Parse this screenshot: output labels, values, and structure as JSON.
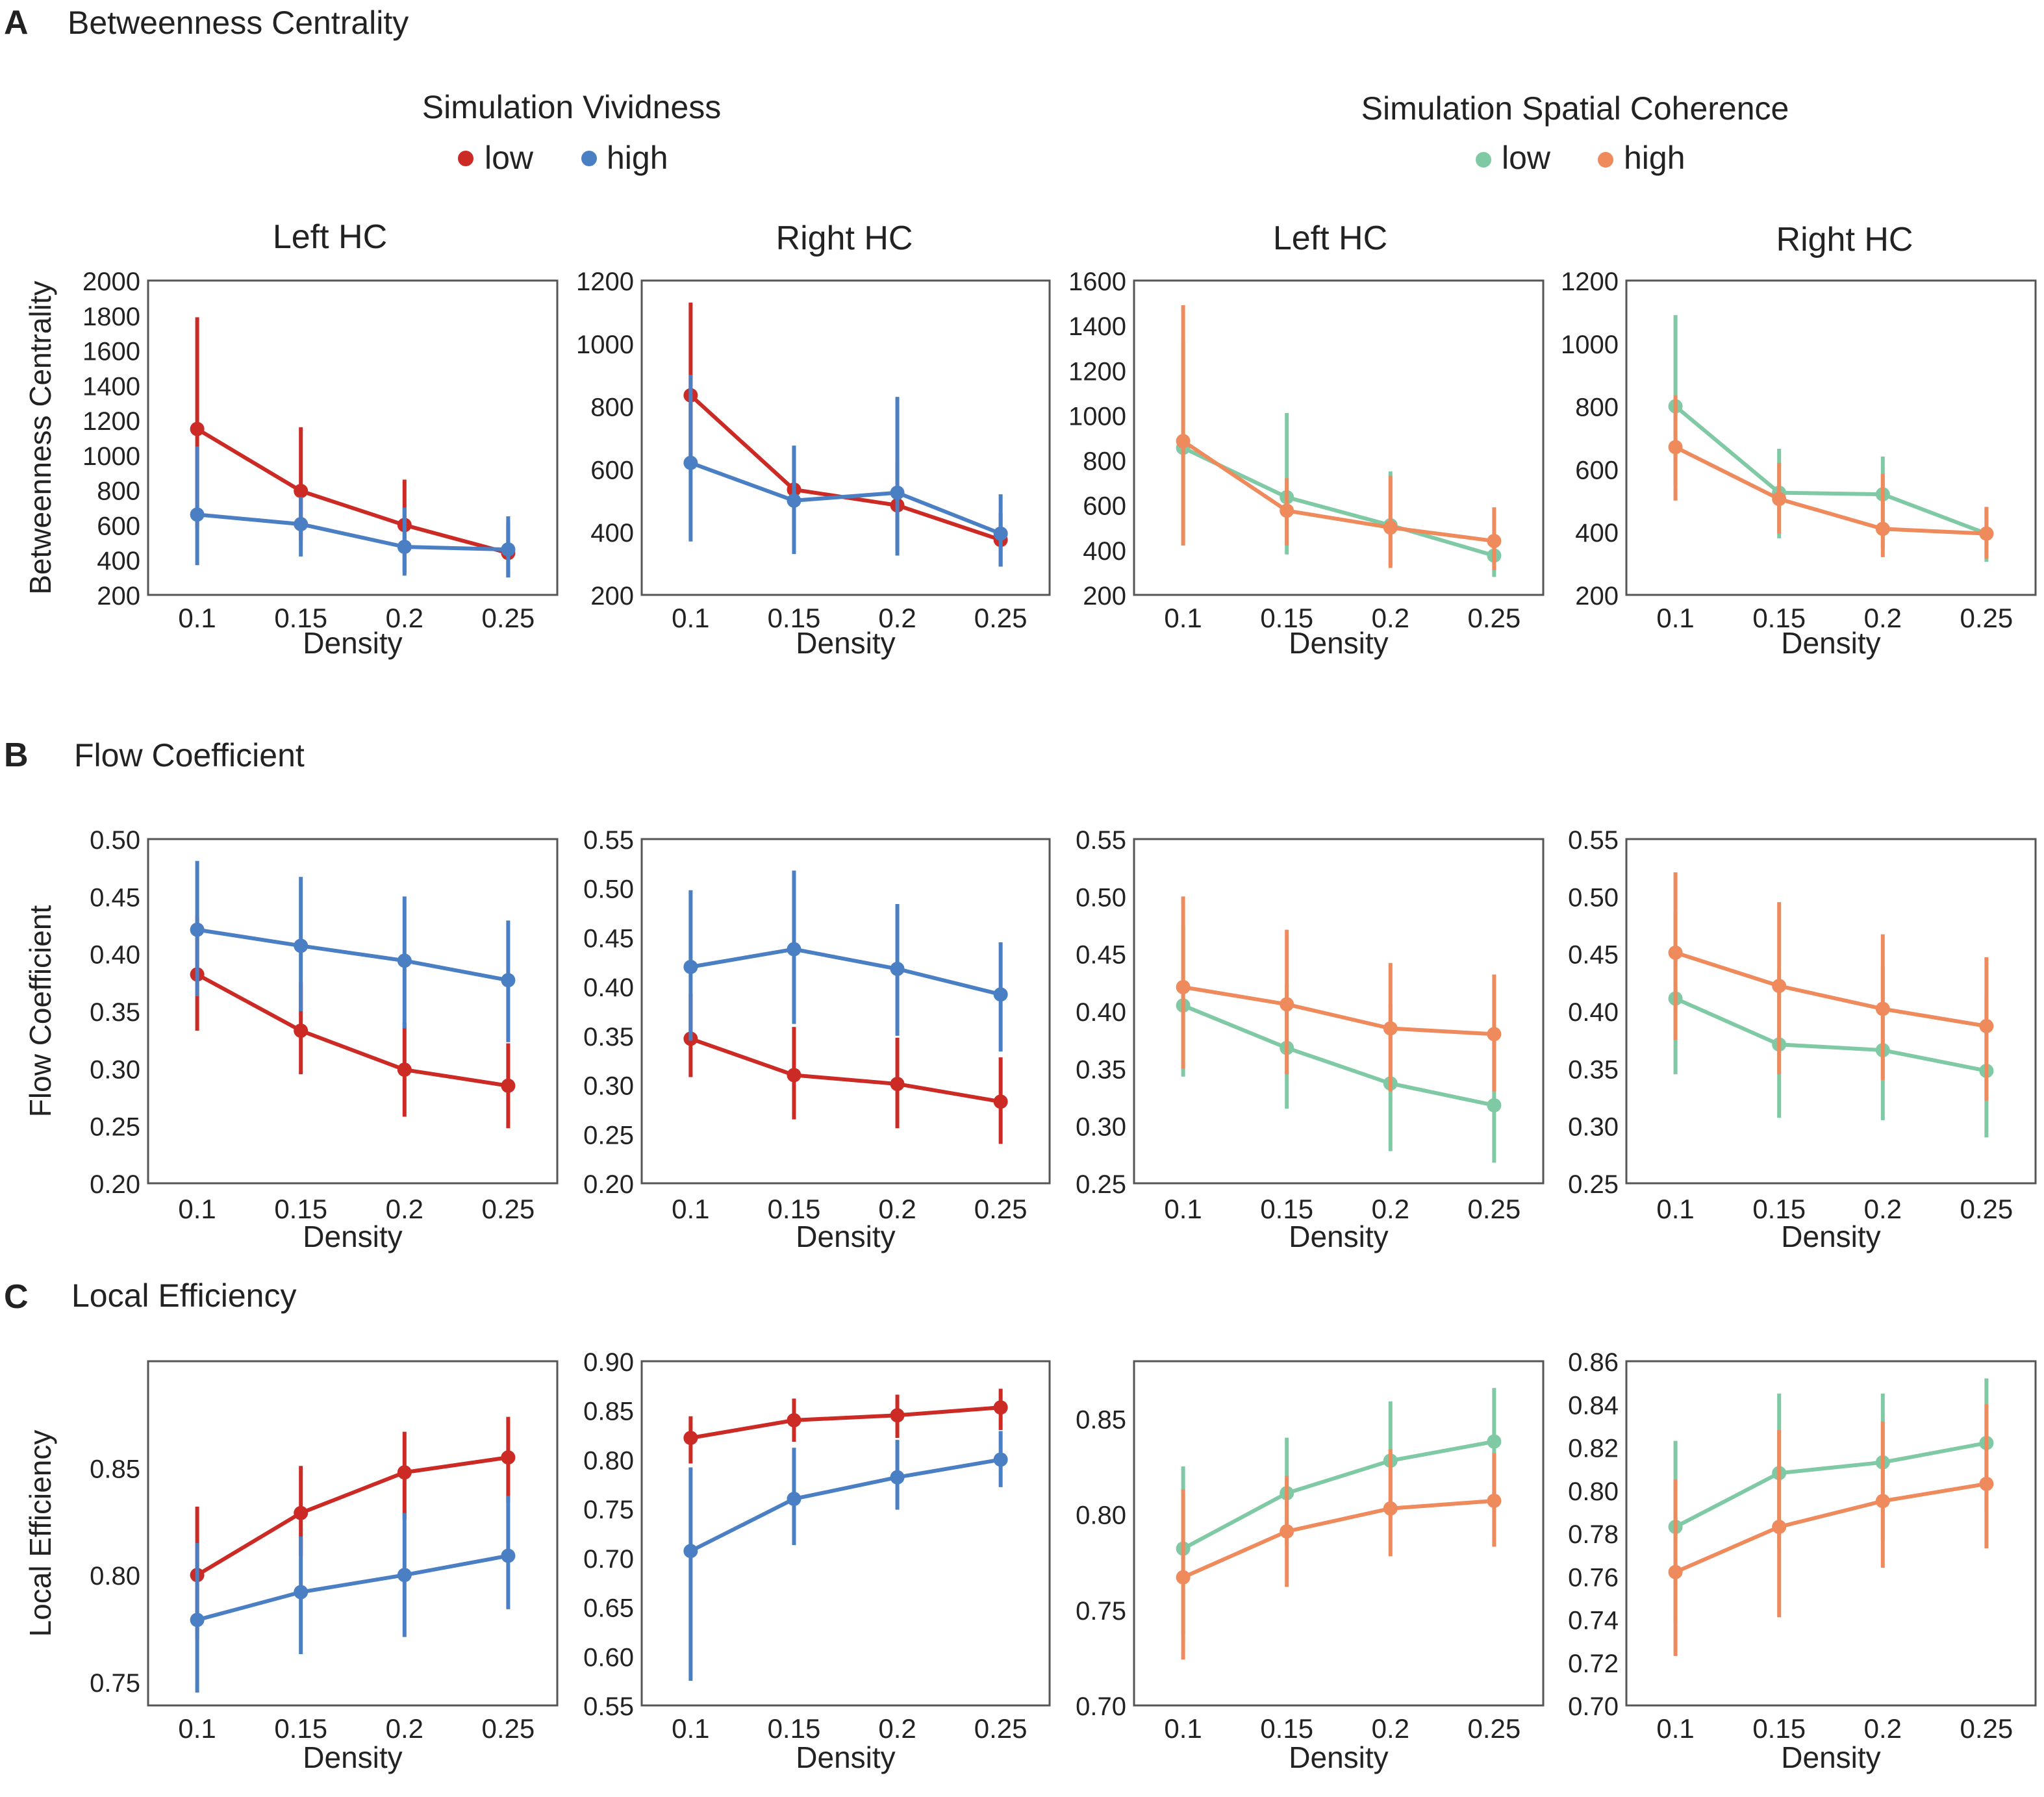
{
  "colors": {
    "vivid_low": "#cc2a24",
    "vivid_high": "#4a7fc4",
    "coh_low": "#7fc9a5",
    "coh_high": "#ee8a5c",
    "axis": "#555555"
  },
  "legends": {
    "vividness": {
      "title": "Simulation Vividness",
      "low": "low",
      "high": "high"
    },
    "coherence": {
      "title": "Simulation Spatial Coherence",
      "low": "low",
      "high": "high"
    }
  },
  "column_titles": [
    "Left HC",
    "Right HC",
    "Left HC",
    "Right HC"
  ],
  "x_label": "Density",
  "x_ticks": [
    "0.1",
    "0.15",
    "0.2",
    "0.25"
  ],
  "chart_data": [
    {
      "panel": "A",
      "title": "Betweenness Centrality",
      "ylabel": "Betweenness Centrality",
      "charts": [
        {
          "type": "line",
          "ylim": [
            200,
            2000
          ],
          "yticks": [
            "200",
            "400",
            "600",
            "800",
            "1000",
            "1200",
            "1400",
            "1600",
            "1800",
            "2000"
          ],
          "colors": [
            "vivid_low",
            "vivid_high"
          ],
          "series": [
            {
              "name": "low",
              "values": [
                1150,
                795,
                600,
                440
              ],
              "err_lo": [
                580,
                510,
                330,
                300
              ],
              "err_hi": [
                1790,
                1160,
                860,
                620
              ]
            },
            {
              "name": "high",
              "values": [
                660,
                605,
                475,
                460
              ],
              "err_lo": [
                370,
                420,
                310,
                300
              ],
              "err_hi": [
                1050,
                760,
                700,
                650
              ]
            }
          ]
        },
        {
          "type": "line",
          "ylim": [
            200,
            1200
          ],
          "yticks": [
            "200",
            "400",
            "600",
            "800",
            "1000",
            "1200"
          ],
          "colors": [
            "vivid_low",
            "vivid_high"
          ],
          "series": [
            {
              "name": "low",
              "values": [
                835,
                535,
                485,
                375
              ],
              "err_lo": [
                630,
                410,
                340,
                290
              ],
              "err_hi": [
                1130,
                670,
                625,
                460
              ]
            },
            {
              "name": "high",
              "values": [
                620,
                500,
                525,
                395
              ],
              "err_lo": [
                370,
                330,
                325,
                290
              ],
              "err_hi": [
                900,
                675,
                830,
                520
              ]
            }
          ]
        },
        {
          "type": "line",
          "ylim": [
            200,
            1600
          ],
          "yticks": [
            "200",
            "400",
            "600",
            "800",
            "1000",
            "1200",
            "1400",
            "1600"
          ],
          "colors": [
            "coh_low",
            "coh_high"
          ],
          "series": [
            {
              "name": "low",
              "values": [
                855,
                635,
                510,
                375
              ],
              "err_lo": [
                420,
                380,
                330,
                280
              ],
              "err_hi": [
                1330,
                1010,
                750,
                470
              ]
            },
            {
              "name": "high",
              "values": [
                885,
                575,
                500,
                440
              ],
              "err_lo": [
                420,
                420,
                320,
                310
              ],
              "err_hi": [
                1490,
                720,
                730,
                590
              ]
            }
          ]
        },
        {
          "type": "line",
          "ylim": [
            200,
            1200
          ],
          "yticks": [
            "200",
            "400",
            "600",
            "800",
            "1000",
            "1200"
          ],
          "colors": [
            "coh_low",
            "coh_high"
          ],
          "series": [
            {
              "name": "low",
              "values": [
                800,
                525,
                520,
                395
              ],
              "err_lo": [
                550,
                380,
                350,
                305
              ],
              "err_hi": [
                1090,
                665,
                640,
                480
              ]
            },
            {
              "name": "high",
              "values": [
                670,
                505,
                410,
                395
              ],
              "err_lo": [
                500,
                395,
                320,
                315
              ],
              "err_hi": [
                835,
                620,
                585,
                480
              ]
            }
          ]
        }
      ]
    },
    {
      "panel": "B",
      "title": "Flow Coefficient",
      "ylabel": "Flow Coefficient",
      "charts": [
        {
          "type": "line",
          "ylim": [
            0.2,
            0.5
          ],
          "yticks": [
            "0.20",
            "0.25",
            "0.30",
            "0.35",
            "0.40",
            "0.45",
            "0.50"
          ],
          "colors": [
            "vivid_low",
            "vivid_high"
          ],
          "series": [
            {
              "name": "low",
              "values": [
                0.382,
                0.333,
                0.299,
                0.285
              ],
              "err_lo": [
                0.333,
                0.295,
                0.258,
                0.248
              ],
              "err_hi": [
                0.433,
                0.375,
                0.34,
                0.322
              ]
            },
            {
              "name": "high",
              "values": [
                0.421,
                0.407,
                0.394,
                0.377
              ],
              "err_lo": [
                0.363,
                0.35,
                0.335,
                0.323
              ],
              "err_hi": [
                0.481,
                0.467,
                0.45,
                0.429
              ]
            }
          ]
        },
        {
          "type": "line",
          "ylim": [
            0.2,
            0.55
          ],
          "yticks": [
            "0.20",
            "0.25",
            "0.30",
            "0.35",
            "0.40",
            "0.45",
            "0.50",
            "0.55"
          ],
          "colors": [
            "vivid_low",
            "vivid_high"
          ],
          "series": [
            {
              "name": "low",
              "values": [
                0.347,
                0.31,
                0.301,
                0.283
              ],
              "err_lo": [
                0.308,
                0.265,
                0.256,
                0.24
              ],
              "err_hi": [
                0.393,
                0.359,
                0.348,
                0.328
              ]
            },
            {
              "name": "high",
              "values": [
                0.42,
                0.438,
                0.418,
                0.392
              ],
              "err_lo": [
                0.345,
                0.362,
                0.35,
                0.334
              ],
              "err_hi": [
                0.498,
                0.518,
                0.484,
                0.445
              ]
            }
          ]
        },
        {
          "type": "line",
          "ylim": [
            0.25,
            0.55
          ],
          "yticks": [
            "0.25",
            "0.30",
            "0.35",
            "0.40",
            "0.45",
            "0.50",
            "0.55"
          ],
          "colors": [
            "coh_low",
            "coh_high"
          ],
          "series": [
            {
              "name": "low",
              "values": [
                0.405,
                0.368,
                0.337,
                0.318
              ],
              "err_lo": [
                0.343,
                0.315,
                0.278,
                0.268
              ],
              "err_hi": [
                0.474,
                0.424,
                0.406,
                0.373
              ]
            },
            {
              "name": "high",
              "values": [
                0.421,
                0.406,
                0.385,
                0.38
              ],
              "err_lo": [
                0.35,
                0.345,
                0.33,
                0.33
              ],
              "err_hi": [
                0.5,
                0.471,
                0.442,
                0.432
              ]
            }
          ]
        },
        {
          "type": "line",
          "ylim": [
            0.25,
            0.55
          ],
          "yticks": [
            "0.25",
            "0.30",
            "0.35",
            "0.40",
            "0.45",
            "0.50",
            "0.55"
          ],
          "colors": [
            "coh_low",
            "coh_high"
          ],
          "series": [
            {
              "name": "low",
              "values": [
                0.411,
                0.371,
                0.366,
                0.348
              ],
              "err_lo": [
                0.345,
                0.307,
                0.305,
                0.29
              ],
              "err_hi": [
                0.487,
                0.437,
                0.439,
                0.413
              ]
            },
            {
              "name": "high",
              "values": [
                0.451,
                0.422,
                0.402,
                0.387
              ],
              "err_lo": [
                0.375,
                0.345,
                0.34,
                0.322
              ],
              "err_hi": [
                0.521,
                0.495,
                0.467,
                0.447
              ]
            }
          ]
        }
      ]
    },
    {
      "panel": "C",
      "title": "Local Efficiency",
      "ylabel": "Local Efficiency",
      "charts": [
        {
          "type": "line",
          "ylim": [
            0.739,
            0.9
          ],
          "yticks": [
            "0.75",
            "0.80",
            "0.85"
          ],
          "ytick_values": [
            0.75,
            0.8,
            0.85
          ],
          "colors": [
            "vivid_low",
            "vivid_high"
          ],
          "series": [
            {
              "name": "low",
              "values": [
                0.8,
                0.829,
                0.848,
                0.855
              ],
              "err_lo": [
                0.77,
                0.809,
                0.826,
                0.834
              ],
              "err_hi": [
                0.832,
                0.851,
                0.867,
                0.874
              ]
            },
            {
              "name": "high",
              "values": [
                0.779,
                0.792,
                0.8,
                0.809
              ],
              "err_lo": [
                0.745,
                0.763,
                0.771,
                0.784
              ],
              "err_hi": [
                0.815,
                0.818,
                0.829,
                0.837
              ]
            }
          ]
        },
        {
          "type": "line",
          "ylim": [
            0.55,
            0.9
          ],
          "yticks": [
            "0.55",
            "0.60",
            "0.65",
            "0.70",
            "0.75",
            "0.80",
            "0.85",
            "0.90"
          ],
          "colors": [
            "vivid_low",
            "vivid_high"
          ],
          "series": [
            {
              "name": "low",
              "values": [
                0.822,
                0.84,
                0.845,
                0.853
              ],
              "err_lo": [
                0.796,
                0.818,
                0.822,
                0.83
              ],
              "err_hi": [
                0.844,
                0.862,
                0.866,
                0.872
              ]
            },
            {
              "name": "high",
              "values": [
                0.707,
                0.76,
                0.782,
                0.8
              ],
              "err_lo": [
                0.575,
                0.713,
                0.749,
                0.772
              ],
              "err_hi": [
                0.792,
                0.812,
                0.82,
                0.829
              ]
            }
          ]
        },
        {
          "type": "line",
          "ylim": [
            0.7,
            0.88
          ],
          "yticks": [
            "0.70",
            "0.75",
            "0.80",
            "0.85"
          ],
          "ytick_values": [
            0.7,
            0.75,
            0.8,
            0.85
          ],
          "colors": [
            "coh_low",
            "coh_high"
          ],
          "series": [
            {
              "name": "low",
              "values": [
                0.782,
                0.811,
                0.828,
                0.838
              ],
              "err_lo": [
                0.737,
                0.784,
                0.797,
                0.811
              ],
              "err_hi": [
                0.825,
                0.84,
                0.859,
                0.866
              ]
            },
            {
              "name": "high",
              "values": [
                0.767,
                0.791,
                0.803,
                0.807
              ],
              "err_lo": [
                0.724,
                0.762,
                0.778,
                0.783
              ],
              "err_hi": [
                0.813,
                0.82,
                0.834,
                0.832
              ]
            }
          ]
        },
        {
          "type": "line",
          "ylim": [
            0.7,
            0.86
          ],
          "yticks": [
            "0.70",
            "0.72",
            "0.74",
            "0.76",
            "0.78",
            "0.80",
            "0.82",
            "0.84",
            "0.86"
          ],
          "colors": [
            "coh_low",
            "coh_high"
          ],
          "series": [
            {
              "name": "low",
              "values": [
                0.783,
                0.808,
                0.813,
                0.822
              ],
              "err_lo": [
                0.738,
                0.773,
                0.777,
                0.79
              ],
              "err_hi": [
                0.823,
                0.845,
                0.845,
                0.852
              ]
            },
            {
              "name": "high",
              "values": [
                0.762,
                0.783,
                0.795,
                0.803
              ],
              "err_lo": [
                0.723,
                0.741,
                0.764,
                0.773
              ],
              "err_hi": [
                0.805,
                0.828,
                0.832,
                0.84
              ]
            }
          ]
        }
      ]
    }
  ]
}
